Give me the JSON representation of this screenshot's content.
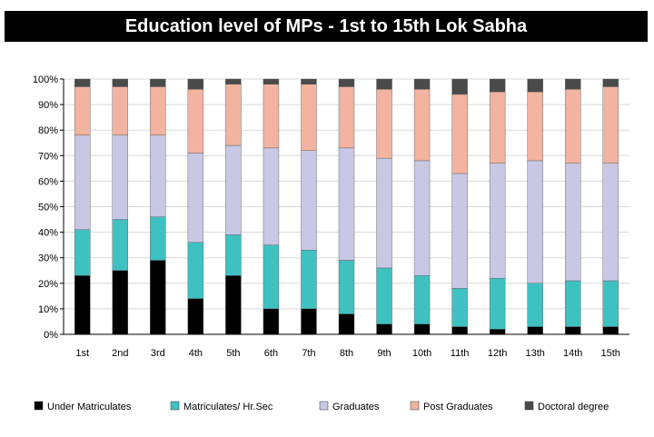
{
  "chart_data": {
    "type": "bar",
    "stacked": true,
    "title": "Education level of MPs - 1st to 15th Lok Sabha",
    "categories": [
      "1st",
      "2nd",
      "3rd",
      "4th",
      "5th",
      "6th",
      "7th",
      "8th",
      "9th",
      "10th",
      "11th",
      "12th",
      "13th",
      "14th",
      "15th"
    ],
    "series": [
      {
        "name": "Under Matriculates",
        "color": "#000000",
        "values": [
          23,
          25,
          29,
          14,
          23,
          10,
          10,
          8,
          4,
          4,
          3,
          2,
          3,
          3,
          3
        ]
      },
      {
        "name": "Matriculates/ Hr.Sec",
        "color": "#3fc1c2",
        "values": [
          18,
          20,
          17,
          22,
          16,
          25,
          23,
          21,
          22,
          19,
          15,
          20,
          17,
          18,
          18
        ]
      },
      {
        "name": "Graduates",
        "color": "#c8c8e4",
        "values": [
          37,
          33,
          32,
          35,
          35,
          38,
          39,
          44,
          43,
          45,
          45,
          45,
          48,
          46,
          46
        ]
      },
      {
        "name": "Post Graduates",
        "color": "#f2b3a1",
        "values": [
          19,
          19,
          19,
          25,
          24,
          25,
          26,
          24,
          27,
          28,
          31,
          28,
          27,
          29,
          30
        ]
      },
      {
        "name": "Doctoral degree",
        "color": "#4a4a4a",
        "values": [
          3,
          3,
          3,
          4,
          2,
          2,
          2,
          3,
          4,
          4,
          6,
          5,
          5,
          4,
          3
        ]
      }
    ],
    "y_ticks": [
      "0%",
      "10%",
      "20%",
      "30%",
      "40%",
      "50%",
      "60%",
      "70%",
      "80%",
      "90%",
      "100%"
    ],
    "ylim": [
      0,
      100
    ],
    "grid": true,
    "legend_position": "bottom"
  }
}
